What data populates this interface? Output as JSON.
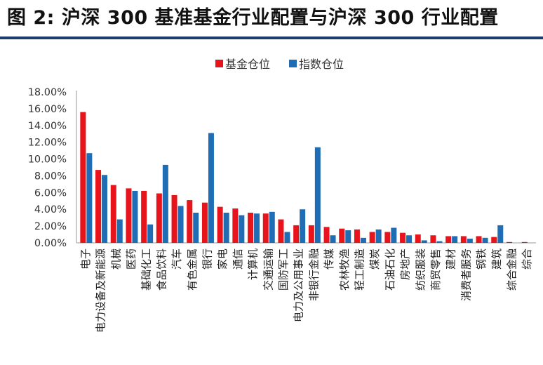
{
  "figure": {
    "title": "图 2: 沪深 300 基准基金行业配置与沪深 300 行业配置"
  },
  "colors": {
    "fund": "#e8141b",
    "index": "#1f6db5",
    "axis": "#9a9a9a",
    "title_rule": "#1a3d6d"
  },
  "chart_data": {
    "type": "bar",
    "title": "",
    "xlabel": "",
    "ylabel": "",
    "ylim": [
      0,
      18
    ],
    "y_ticks": [
      "0.00%",
      "2.00%",
      "4.00%",
      "6.00%",
      "8.00%",
      "10.00%",
      "12.00%",
      "14.00%",
      "16.00%",
      "18.00%"
    ],
    "legend_position": "top",
    "grid": false,
    "categories": [
      "电子",
      "电力设备及新能源",
      "机械",
      "医药",
      "基础化工",
      "食品饮料",
      "汽车",
      "有色金属",
      "银行",
      "家电",
      "通信",
      "计算机",
      "交通运输",
      "国防军工",
      "电力及公用事业",
      "非银行金融",
      "传媒",
      "农林牧渔",
      "轻工制造",
      "煤炭",
      "石油石化",
      "房地产",
      "纺织服装",
      "商贸零售",
      "建材",
      "消费者服务",
      "钢铁",
      "建筑",
      "综合金融",
      "综合"
    ],
    "series": [
      {
        "name": "基金仓位",
        "values": [
          15.6,
          8.7,
          6.9,
          6.5,
          6.2,
          5.9,
          5.7,
          5.1,
          4.8,
          4.3,
          4.1,
          3.6,
          3.5,
          2.8,
          2.1,
          2.1,
          1.9,
          1.7,
          1.6,
          1.3,
          1.3,
          1.2,
          1.0,
          0.9,
          0.8,
          0.8,
          0.8,
          0.7,
          0.1,
          0.1
        ]
      },
      {
        "name": "指数仓位",
        "values": [
          10.7,
          8.1,
          2.8,
          6.2,
          2.2,
          9.3,
          4.4,
          3.6,
          13.1,
          3.6,
          3.3,
          3.5,
          3.7,
          1.3,
          4.0,
          11.4,
          0.9,
          1.5,
          0.6,
          1.6,
          1.8,
          0.9,
          0.3,
          0.2,
          0.8,
          0.5,
          0.6,
          2.1,
          0.0,
          0.0
        ]
      }
    ]
  }
}
